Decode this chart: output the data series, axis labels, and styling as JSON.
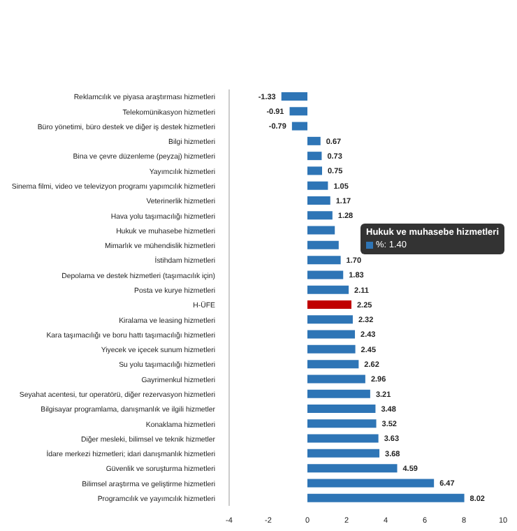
{
  "chart_data": {
    "type": "bar",
    "orientation": "horizontal",
    "categories": [
      "Reklamcılık ve piyasa araştırması hizmetleri",
      "Telekomünikasyon hizmetleri",
      "Büro yönetimi, büro destek ve diğer iş destek hizmetleri",
      "Bilgi hizmetleri",
      "Bina ve çevre düzenleme (peyzaj) hizmetleri",
      "Yayımcılık hizmetleri",
      "Sinema filmi, video ve televizyon programı yapımcılık hizmetleri",
      "Veterinerlik hizmetleri",
      "Hava yolu taşımacılığı hizmetleri",
      "Hukuk ve muhasebe hizmetleri",
      "Mimarlık ve mühendislik hizmetleri",
      "İstihdam hizmetleri",
      "Depolama ve destek hizmetleri (taşımacılık için)",
      "Posta ve kurye hizmetleri",
      "H-ÜFE",
      "Kiralama ve leasing hizmetleri",
      "Kara taşımacılığı ve boru hattı taşımacılığı hizmetleri",
      "Yiyecek ve içecek sunum hizmetleri",
      "Su yolu taşımacılığı hizmetleri",
      "Gayrimenkul hizmetleri",
      "Seyahat acentesi, tur operatörü, diğer rezervasyon hizmetleri",
      "Bilgisayar programlama, danışmanlık ve ilgili hizmetler",
      "Konaklama hizmetleri",
      "Diğer mesleki, bilimsel ve teknik hizmetler",
      "İdare merkezi hizmetleri; idari danışmanlık hizmetleri",
      "Güvenlik ve soruşturma hizmetleri",
      "Bilimsel araştırma ve geliştirme hizmetleri",
      "Programcılık ve yayımcılık hizmetleri"
    ],
    "values": [
      -1.33,
      -0.91,
      -0.79,
      0.67,
      0.73,
      0.75,
      1.05,
      1.17,
      1.28,
      1.4,
      1.6,
      1.7,
      1.83,
      2.11,
      2.25,
      2.32,
      2.43,
      2.45,
      2.62,
      2.96,
      3.21,
      3.48,
      3.52,
      3.63,
      3.68,
      4.59,
      6.47,
      8.02
    ],
    "value_labels": [
      "-1.33",
      "-0.91",
      "-0.79",
      "0.67",
      "0.73",
      "0.75",
      "1.05",
      "1.17",
      "1.28",
      null,
      null,
      "1.70",
      "1.83",
      "2.11",
      "2.25",
      "2.32",
      "2.43",
      "2.45",
      "2.62",
      "2.96",
      "3.21",
      "3.48",
      "3.52",
      "3.63",
      "3.68",
      "4.59",
      "6.47",
      "8.02"
    ],
    "colors": [
      "#2e75b6",
      "#2e75b6",
      "#2e75b6",
      "#2e75b6",
      "#2e75b6",
      "#2e75b6",
      "#2e75b6",
      "#2e75b6",
      "#2e75b6",
      "#2e75b6",
      "#2e75b6",
      "#2e75b6",
      "#2e75b6",
      "#2e75b6",
      "#c00000",
      "#2e75b6",
      "#2e75b6",
      "#2e75b6",
      "#2e75b6",
      "#2e75b6",
      "#2e75b6",
      "#2e75b6",
      "#2e75b6",
      "#2e75b6",
      "#2e75b6",
      "#2e75b6",
      "#2e75b6",
      "#2e75b6"
    ],
    "xlim": [
      -4,
      10
    ],
    "xticks": [
      -4,
      -2,
      0,
      2,
      4,
      6,
      8,
      10
    ],
    "annotations": [
      "Hukuk ve muhasebe hizmetleri",
      "%: 1.40"
    ]
  }
}
